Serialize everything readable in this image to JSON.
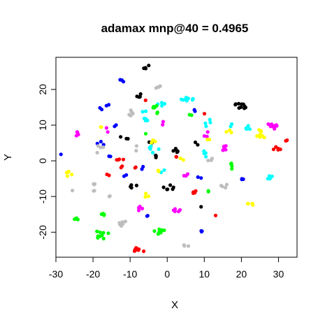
{
  "chart_data": {
    "type": "scatter",
    "title": "adamax mnp@40 = 0.4965",
    "xlabel": "X",
    "ylabel": "Y",
    "xlim": [
      -30,
      35
    ],
    "ylim": [
      -27,
      29
    ],
    "xticks": [
      -30,
      -20,
      -10,
      0,
      10,
      20,
      30
    ],
    "yticks": [
      -20,
      -10,
      0,
      10,
      20
    ],
    "grid": false,
    "legend": "none",
    "clusters": [
      {
        "color": "#000000",
        "x": -5.5,
        "y": 26.3,
        "spread_x": 1.2,
        "spread_y": 0.5,
        "n": 5
      },
      {
        "color": "#000000",
        "x": -7.5,
        "y": 18.2,
        "spread_x": 1.5,
        "spread_y": 0.6,
        "n": 4
      },
      {
        "color": "#000000",
        "x": 19.5,
        "y": 15.4,
        "spread_x": 2.0,
        "spread_y": 1.0,
        "n": 10
      },
      {
        "color": "#000000",
        "x": -11.0,
        "y": 6.5,
        "spread_x": 1.8,
        "spread_y": 0.6,
        "n": 3
      },
      {
        "color": "#000000",
        "x": 3.0,
        "y": 3.0,
        "spread_x": 1.5,
        "spread_y": 1.0,
        "n": 6
      },
      {
        "color": "#000000",
        "x": -4.0,
        "y": 5.0,
        "spread_x": 1.0,
        "spread_y": 0.5,
        "n": 2
      },
      {
        "color": "#000000",
        "x": -3.0,
        "y": 1.0,
        "spread_x": 1.0,
        "spread_y": 1.0,
        "n": 3
      },
      {
        "color": "#000000",
        "x": 8.0,
        "y": 5.0,
        "spread_x": 1.0,
        "spread_y": 0.8,
        "n": 2
      },
      {
        "color": "#000000",
        "x": -9.0,
        "y": -7.0,
        "spread_x": 1.0,
        "spread_y": 1.0,
        "n": 4
      },
      {
        "color": "#000000",
        "x": 0.5,
        "y": -7.5,
        "spread_x": 1.5,
        "spread_y": 1.0,
        "n": 6
      },
      {
        "color": "#000000",
        "x": 9.0,
        "y": -12.5,
        "spread_x": 0.5,
        "spread_y": 0.5,
        "n": 1
      },
      {
        "color": "#0000ff",
        "x": -12.5,
        "y": 22.2,
        "spread_x": 1.0,
        "spread_y": 0.6,
        "n": 3
      },
      {
        "color": "#0000ff",
        "x": -17.0,
        "y": 15.2,
        "spread_x": 1.5,
        "spread_y": 1.0,
        "n": 4
      },
      {
        "color": "#0000ff",
        "x": -13.5,
        "y": 9.5,
        "spread_x": 0.8,
        "spread_y": 0.6,
        "n": 2
      },
      {
        "color": "#0000ff",
        "x": -18.0,
        "y": 4.5,
        "spread_x": 1.5,
        "spread_y": 1.0,
        "n": 3
      },
      {
        "color": "#0000ff",
        "x": -15.5,
        "y": 2.0,
        "spread_x": 0.8,
        "spread_y": 0.8,
        "n": 2
      },
      {
        "color": "#0000ff",
        "x": -11.0,
        "y": -4.0,
        "spread_x": 0.8,
        "spread_y": 0.6,
        "n": 2
      },
      {
        "color": "#0000ff",
        "x": -6.5,
        "y": -2.0,
        "spread_x": 0.6,
        "spread_y": 0.5,
        "n": 2
      },
      {
        "color": "#0000ff",
        "x": -5.0,
        "y": -15.0,
        "spread_x": 0.8,
        "spread_y": 0.6,
        "n": 2
      },
      {
        "color": "#0000ff",
        "x": 9.5,
        "y": -19.5,
        "spread_x": 0.8,
        "spread_y": 0.6,
        "n": 3
      },
      {
        "color": "#0000ff",
        "x": 20.5,
        "y": -5.5,
        "spread_x": 1.0,
        "spread_y": 0.6,
        "n": 3
      },
      {
        "color": "#0000ff",
        "x": 7.0,
        "y": 14.0,
        "spread_x": 0.6,
        "spread_y": 0.6,
        "n": 2
      },
      {
        "color": "#0000ff",
        "x": 9.0,
        "y": -4.5,
        "spread_x": 0.8,
        "spread_y": 0.6,
        "n": 2
      },
      {
        "color": "#0000ff",
        "x": -28.5,
        "y": 1.8,
        "spread_x": 0.2,
        "spread_y": 0.2,
        "n": 1
      },
      {
        "color": "#bebebe",
        "x": -2.5,
        "y": 20.6,
        "spread_x": 1.0,
        "spread_y": 0.5,
        "n": 4
      },
      {
        "color": "#bebebe",
        "x": -10.0,
        "y": 13.5,
        "spread_x": 1.5,
        "spread_y": 1.0,
        "n": 5
      },
      {
        "color": "#bebebe",
        "x": -18.0,
        "y": 3.0,
        "spread_x": 1.0,
        "spread_y": 1.5,
        "n": 4
      },
      {
        "color": "#bebebe",
        "x": -19.5,
        "y": -7.5,
        "spread_x": 1.2,
        "spread_y": 1.2,
        "n": 5
      },
      {
        "color": "#bebebe",
        "x": -12.0,
        "y": -17.5,
        "spread_x": 1.5,
        "spread_y": 1.0,
        "n": 6
      },
      {
        "color": "#bebebe",
        "x": 5.0,
        "y": -23.7,
        "spread_x": 0.8,
        "spread_y": 0.4,
        "n": 3
      },
      {
        "color": "#bebebe",
        "x": 11.5,
        "y": 0.5,
        "spread_x": 1.0,
        "spread_y": 1.0,
        "n": 3
      },
      {
        "color": "#bebebe",
        "x": 15.5,
        "y": -7.5,
        "spread_x": 1.2,
        "spread_y": 1.0,
        "n": 4
      },
      {
        "color": "#bebebe",
        "x": -25.5,
        "y": -8.5,
        "spread_x": 0.2,
        "spread_y": 0.2,
        "n": 1
      },
      {
        "color": "#bebebe",
        "x": -15.5,
        "y": -9.5,
        "spread_x": 0.5,
        "spread_y": 0.5,
        "n": 2
      },
      {
        "color": "#bebebe",
        "x": -8.0,
        "y": 3.5,
        "spread_x": 0.8,
        "spread_y": 0.8,
        "n": 2
      },
      {
        "color": "#00ffff",
        "x": 5.5,
        "y": 17.3,
        "spread_x": 1.8,
        "spread_y": 0.5,
        "n": 8
      },
      {
        "color": "#00ffff",
        "x": -6.0,
        "y": 12.5,
        "spread_x": 1.5,
        "spread_y": 1.5,
        "n": 6
      },
      {
        "color": "#00ffff",
        "x": -1.5,
        "y": 15.8,
        "spread_x": 1.5,
        "spread_y": 0.8,
        "n": 5
      },
      {
        "color": "#00ffff",
        "x": 11.5,
        "y": 10.5,
        "spread_x": 1.5,
        "spread_y": 1.2,
        "n": 4
      },
      {
        "color": "#00ffff",
        "x": 22.0,
        "y": 9.5,
        "spread_x": 1.2,
        "spread_y": 1.0,
        "n": 5
      },
      {
        "color": "#00ffff",
        "x": 27.5,
        "y": -4.5,
        "spread_x": 0.8,
        "spread_y": 0.6,
        "n": 5
      },
      {
        "color": "#00ffff",
        "x": -3.5,
        "y": 3.5,
        "spread_x": 1.5,
        "spread_y": 1.5,
        "n": 5
      },
      {
        "color": "#00ffff",
        "x": 10.0,
        "y": 2.0,
        "spread_x": 1.0,
        "spread_y": 1.5,
        "n": 4
      },
      {
        "color": "#00ffff",
        "x": 17.0,
        "y": 10.0,
        "spread_x": 0.5,
        "spread_y": 0.5,
        "n": 2
      },
      {
        "color": "#00ffff",
        "x": -1.5,
        "y": -2.5,
        "spread_x": 0.8,
        "spread_y": 0.8,
        "n": 2
      },
      {
        "color": "#00ff00",
        "x": -3.5,
        "y": 15.5,
        "spread_x": 0.8,
        "spread_y": 1.0,
        "n": 4
      },
      {
        "color": "#00ff00",
        "x": -3.0,
        "y": 13.5,
        "spread_x": 0.5,
        "spread_y": 0.5,
        "n": 2
      },
      {
        "color": "#00ff00",
        "x": -17.5,
        "y": -15.0,
        "spread_x": 0.8,
        "spread_y": 0.8,
        "n": 4
      },
      {
        "color": "#00ff00",
        "x": -17.5,
        "y": -20.5,
        "spread_x": 1.8,
        "spread_y": 1.5,
        "n": 9
      },
      {
        "color": "#00ff00",
        "x": -2.0,
        "y": -19.8,
        "spread_x": 1.5,
        "spread_y": 1.2,
        "n": 8
      },
      {
        "color": "#00ff00",
        "x": 17.0,
        "y": -1.5,
        "spread_x": 1.2,
        "spread_y": 1.0,
        "n": 4
      },
      {
        "color": "#00ff00",
        "x": -24.5,
        "y": -16.5,
        "spread_x": 0.8,
        "spread_y": 0.5,
        "n": 4
      },
      {
        "color": "#00ff00",
        "x": 11.0,
        "y": -8.5,
        "spread_x": 0.5,
        "spread_y": 0.8,
        "n": 2
      },
      {
        "color": "#00ff00",
        "x": 6.5,
        "y": 13.0,
        "spread_x": 0.5,
        "spread_y": 0.5,
        "n": 2
      },
      {
        "color": "#00ff00",
        "x": -6.0,
        "y": 7.5,
        "spread_x": 0.5,
        "spread_y": 0.5,
        "n": 1
      },
      {
        "color": "#ff0000",
        "x": -7.5,
        "y": -25.0,
        "spread_x": 1.5,
        "spread_y": 0.8,
        "n": 8
      },
      {
        "color": "#ff0000",
        "x": -12.5,
        "y": -0.5,
        "spread_x": 1.5,
        "spread_y": 1.5,
        "n": 6
      },
      {
        "color": "#ff0000",
        "x": -16.0,
        "y": -4.0,
        "spread_x": 0.5,
        "spread_y": 0.5,
        "n": 2
      },
      {
        "color": "#ff0000",
        "x": 29.5,
        "y": 3.5,
        "spread_x": 1.2,
        "spread_y": 0.6,
        "n": 5
      },
      {
        "color": "#ff0000",
        "x": 32.0,
        "y": 5.5,
        "spread_x": 0.5,
        "spread_y": 0.4,
        "n": 2
      },
      {
        "color": "#ff0000",
        "x": 7.0,
        "y": -8.8,
        "spread_x": 1.2,
        "spread_y": 0.5,
        "n": 4
      },
      {
        "color": "#ff0000",
        "x": -6.0,
        "y": 17.0,
        "spread_x": 0.3,
        "spread_y": 0.3,
        "n": 1
      },
      {
        "color": "#ff0000",
        "x": 10.0,
        "y": 13.0,
        "spread_x": 0.3,
        "spread_y": 0.3,
        "n": 1
      },
      {
        "color": "#ff0000",
        "x": 13.0,
        "y": -15.5,
        "spread_x": 0.3,
        "spread_y": 0.3,
        "n": 1
      },
      {
        "color": "#ff0000",
        "x": 2.5,
        "y": 1.5,
        "spread_x": 0.5,
        "spread_y": 0.5,
        "n": 2
      },
      {
        "color": "#ff0000",
        "x": -8.5,
        "y": -1.5,
        "spread_x": 0.5,
        "spread_y": 0.5,
        "n": 2
      },
      {
        "color": "#ff00ff",
        "x": 28.5,
        "y": 10.0,
        "spread_x": 1.5,
        "spread_y": 1.2,
        "n": 10
      },
      {
        "color": "#ff00ff",
        "x": -24.0,
        "y": 7.5,
        "spread_x": 0.6,
        "spread_y": 1.2,
        "n": 6
      },
      {
        "color": "#ff00ff",
        "x": -7.0,
        "y": -13.5,
        "spread_x": 0.8,
        "spread_y": 0.8,
        "n": 4
      },
      {
        "color": "#ff00ff",
        "x": 2.5,
        "y": -14.0,
        "spread_x": 1.2,
        "spread_y": 0.6,
        "n": 5
      },
      {
        "color": "#ff00ff",
        "x": 15.5,
        "y": 3.5,
        "spread_x": 1.0,
        "spread_y": 1.0,
        "n": 5
      },
      {
        "color": "#ff00ff",
        "x": 10.5,
        "y": 7.5,
        "spread_x": 0.8,
        "spread_y": 0.8,
        "n": 3
      },
      {
        "color": "#ff00ff",
        "x": 5.0,
        "y": -4.0,
        "spread_x": 0.8,
        "spread_y": 0.6,
        "n": 3
      },
      {
        "color": "#ff00ff",
        "x": -16.5,
        "y": 8.5,
        "spread_x": 0.8,
        "spread_y": 0.8,
        "n": 2
      },
      {
        "color": "#ff00ff",
        "x": -1.0,
        "y": 10.5,
        "spread_x": 0.5,
        "spread_y": 0.5,
        "n": 2
      },
      {
        "color": "#ffff00",
        "x": 25.0,
        "y": 7.5,
        "spread_x": 1.5,
        "spread_y": 1.5,
        "n": 9
      },
      {
        "color": "#ffff00",
        "x": -26.5,
        "y": -3.5,
        "spread_x": 1.0,
        "spread_y": 1.0,
        "n": 5
      },
      {
        "color": "#ffff00",
        "x": 22.5,
        "y": -12.0,
        "spread_x": 0.8,
        "spread_y": 0.6,
        "n": 4
      },
      {
        "color": "#ffff00",
        "x": 16.5,
        "y": 8.0,
        "spread_x": 0.8,
        "spread_y": 0.8,
        "n": 3
      },
      {
        "color": "#ffff00",
        "x": -18.0,
        "y": 9.5,
        "spread_x": 0.8,
        "spread_y": 0.4,
        "n": 2
      },
      {
        "color": "#ffff00",
        "x": -5.5,
        "y": -9.5,
        "spread_x": 0.8,
        "spread_y": 0.8,
        "n": 3
      },
      {
        "color": "#ffff00",
        "x": -4.0,
        "y": 5.5,
        "spread_x": 1.0,
        "spread_y": 0.5,
        "n": 3
      },
      {
        "color": "#ffff00",
        "x": -2.0,
        "y": -2.5,
        "spread_x": 1.0,
        "spread_y": 0.5,
        "n": 2
      },
      {
        "color": "#ffff00",
        "x": 4.0,
        "y": 0.5,
        "spread_x": 0.5,
        "spread_y": 0.5,
        "n": 2
      },
      {
        "color": "#ffff00",
        "x": 11.0,
        "y": 6.0,
        "spread_x": 0.5,
        "spread_y": 0.5,
        "n": 2
      }
    ]
  }
}
